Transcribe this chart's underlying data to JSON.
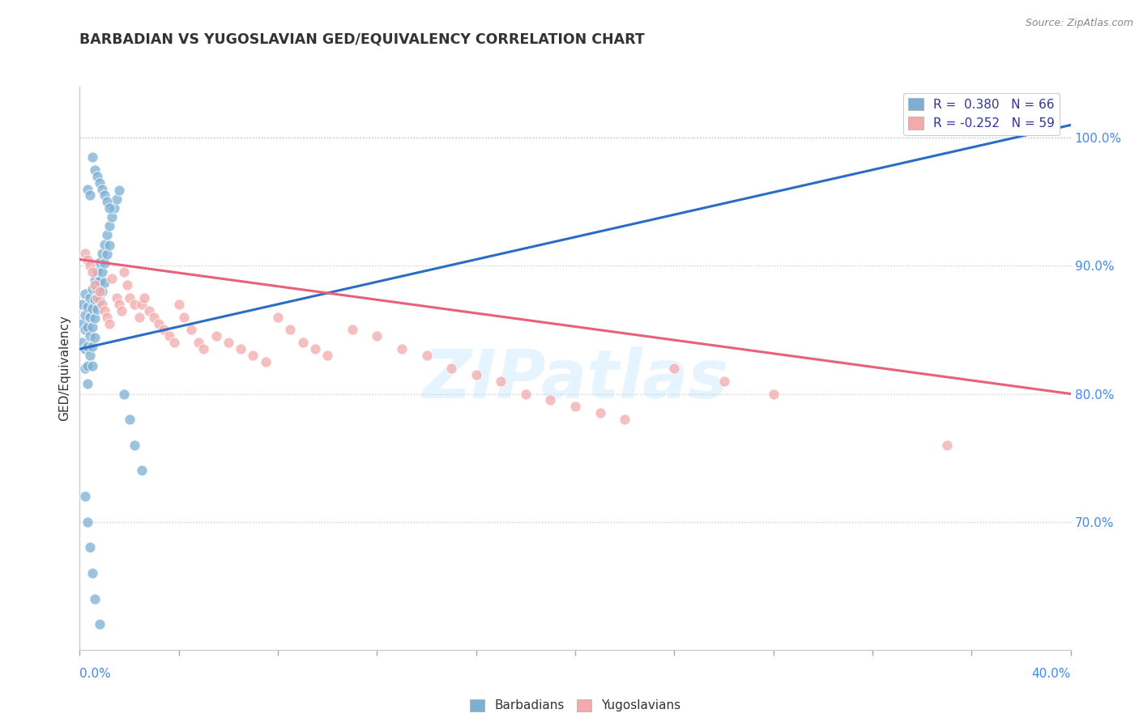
{
  "title": "BARBADIAN VS YUGOSLAVIAN GED/EQUIVALENCY CORRELATION CHART",
  "source": "Source: ZipAtlas.com",
  "ylabel": "GED/Equivalency",
  "yticks_labels": [
    "100.0%",
    "90.0%",
    "80.0%",
    "70.0%"
  ],
  "ytick_vals": [
    1.0,
    0.9,
    0.8,
    0.7
  ],
  "xlim": [
    0.0,
    0.4
  ],
  "ylim": [
    0.6,
    1.04
  ],
  "legend_blue_label": "R =  0.380   N = 66",
  "legend_pink_label": "R = -0.252   N = 59",
  "blue_color": "#7BAFD4",
  "pink_color": "#F4AAAA",
  "blue_line_color": "#2B6CC4",
  "pink_line_color": "#E8607A",
  "watermark": "ZIPatlas",
  "barbadians_label": "Barbadians",
  "yugoslavians_label": "Yugoslavians",
  "blue_scatter_x": [
    0.001,
    0.001,
    0.001,
    0.002,
    0.002,
    0.002,
    0.002,
    0.002,
    0.003,
    0.003,
    0.003,
    0.003,
    0.003,
    0.004,
    0.004,
    0.004,
    0.004,
    0.005,
    0.005,
    0.005,
    0.005,
    0.005,
    0.006,
    0.006,
    0.006,
    0.006,
    0.007,
    0.007,
    0.007,
    0.008,
    0.008,
    0.008,
    0.009,
    0.009,
    0.009,
    0.01,
    0.01,
    0.01,
    0.011,
    0.011,
    0.012,
    0.012,
    0.013,
    0.014,
    0.015,
    0.016,
    0.018,
    0.02,
    0.022,
    0.025,
    0.003,
    0.004,
    0.005,
    0.006,
    0.007,
    0.008,
    0.009,
    0.01,
    0.011,
    0.012,
    0.002,
    0.003,
    0.004,
    0.005,
    0.006,
    0.008
  ],
  "blue_scatter_y": [
    0.855,
    0.87,
    0.84,
    0.862,
    0.878,
    0.85,
    0.835,
    0.82,
    0.868,
    0.852,
    0.837,
    0.822,
    0.808,
    0.875,
    0.86,
    0.845,
    0.83,
    0.882,
    0.867,
    0.852,
    0.837,
    0.822,
    0.889,
    0.874,
    0.859,
    0.844,
    0.896,
    0.881,
    0.866,
    0.903,
    0.888,
    0.873,
    0.91,
    0.895,
    0.88,
    0.917,
    0.902,
    0.887,
    0.924,
    0.909,
    0.931,
    0.916,
    0.938,
    0.945,
    0.952,
    0.959,
    0.8,
    0.78,
    0.76,
    0.74,
    0.96,
    0.955,
    0.985,
    0.975,
    0.97,
    0.965,
    0.96,
    0.955,
    0.95,
    0.945,
    0.72,
    0.7,
    0.68,
    0.66,
    0.64,
    0.62
  ],
  "pink_scatter_x": [
    0.002,
    0.003,
    0.004,
    0.005,
    0.006,
    0.007,
    0.008,
    0.009,
    0.01,
    0.011,
    0.012,
    0.013,
    0.015,
    0.016,
    0.017,
    0.018,
    0.019,
    0.02,
    0.022,
    0.024,
    0.025,
    0.026,
    0.028,
    0.03,
    0.032,
    0.034,
    0.036,
    0.038,
    0.04,
    0.042,
    0.045,
    0.048,
    0.05,
    0.055,
    0.06,
    0.065,
    0.07,
    0.075,
    0.08,
    0.085,
    0.09,
    0.095,
    0.1,
    0.11,
    0.12,
    0.13,
    0.14,
    0.15,
    0.16,
    0.17,
    0.18,
    0.19,
    0.2,
    0.21,
    0.22,
    0.24,
    0.26,
    0.28,
    0.35
  ],
  "pink_scatter_y": [
    0.91,
    0.905,
    0.9,
    0.895,
    0.885,
    0.875,
    0.88,
    0.87,
    0.865,
    0.86,
    0.855,
    0.89,
    0.875,
    0.87,
    0.865,
    0.895,
    0.885,
    0.875,
    0.87,
    0.86,
    0.87,
    0.875,
    0.865,
    0.86,
    0.855,
    0.85,
    0.845,
    0.84,
    0.87,
    0.86,
    0.85,
    0.84,
    0.835,
    0.845,
    0.84,
    0.835,
    0.83,
    0.825,
    0.86,
    0.85,
    0.84,
    0.835,
    0.83,
    0.85,
    0.845,
    0.835,
    0.83,
    0.82,
    0.815,
    0.81,
    0.8,
    0.795,
    0.79,
    0.785,
    0.78,
    0.82,
    0.81,
    0.8,
    0.76
  ],
  "blue_trend_x": [
    0.0,
    0.4
  ],
  "blue_trend_y": [
    0.835,
    1.01
  ],
  "pink_trend_x": [
    0.0,
    0.4
  ],
  "pink_trend_y": [
    0.905,
    0.8
  ]
}
